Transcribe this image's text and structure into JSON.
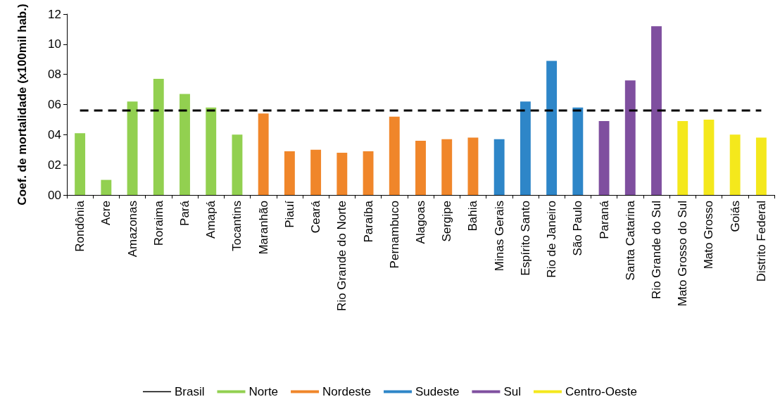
{
  "chart_data": {
    "type": "bar",
    "ylabel": "Coef. de mortalidade (x100mil hab.)",
    "categories": [
      "Rondônia",
      "Acre",
      "Amazonas",
      "Roraima",
      "Pará",
      "Amapá",
      "Tocantins",
      "Maranhão",
      "Piauí",
      "Ceará",
      "Rio Grande do Norte",
      "Paraíba",
      "Pernambuco",
      "Alagoas",
      "Sergipe",
      "Bahia",
      "Minas Gerais",
      "Espírito Santo",
      "Rio de Janeiro",
      "São Paulo",
      "Paraná",
      "Santa Catarina",
      "Rio Grande do Sul",
      "Mato Grosso do Sul",
      "Mato Grosso",
      "Goiás",
      "Distrito Federal"
    ],
    "series": [
      {
        "name": "Brasil",
        "type": "line",
        "color": "#000000",
        "line_style": "dashed",
        "values": [
          5.6,
          5.6,
          5.6,
          5.6,
          5.6,
          5.6,
          5.6,
          5.6,
          5.6,
          5.6,
          5.6,
          5.6,
          5.6,
          5.6,
          5.6,
          5.6,
          5.6,
          5.6,
          5.6,
          5.6,
          5.6,
          5.6,
          5.6,
          5.6,
          5.6,
          5.6,
          5.6
        ]
      },
      {
        "name": "Norte",
        "color": "#92d050",
        "values": [
          4.1,
          1.0,
          6.2,
          7.7,
          6.7,
          5.8,
          4.0,
          null,
          null,
          null,
          null,
          null,
          null,
          null,
          null,
          null,
          null,
          null,
          null,
          null,
          null,
          null,
          null,
          null,
          null,
          null,
          null
        ]
      },
      {
        "name": "Nordeste",
        "color": "#f0862a",
        "values": [
          null,
          null,
          null,
          null,
          null,
          null,
          null,
          5.4,
          2.9,
          3.0,
          2.8,
          2.9,
          5.2,
          3.6,
          3.7,
          3.8,
          null,
          null,
          null,
          null,
          null,
          null,
          null,
          null,
          null,
          null,
          null
        ]
      },
      {
        "name": "Sudeste",
        "color": "#2e86c8",
        "values": [
          null,
          null,
          null,
          null,
          null,
          null,
          null,
          null,
          null,
          null,
          null,
          null,
          null,
          null,
          null,
          null,
          3.7,
          6.2,
          8.9,
          5.8,
          null,
          null,
          null,
          null,
          null,
          null,
          null
        ]
      },
      {
        "name": "Sul",
        "color": "#7f4f9f",
        "values": [
          null,
          null,
          null,
          null,
          null,
          null,
          null,
          null,
          null,
          null,
          null,
          null,
          null,
          null,
          null,
          null,
          null,
          null,
          null,
          null,
          4.9,
          7.6,
          11.2,
          null,
          null,
          null,
          null
        ]
      },
      {
        "name": "Centro-Oeste",
        "color": "#f4e81c",
        "values": [
          null,
          null,
          null,
          null,
          null,
          null,
          null,
          null,
          null,
          null,
          null,
          null,
          null,
          null,
          null,
          null,
          null,
          null,
          null,
          null,
          null,
          null,
          null,
          4.9,
          5.0,
          4.0,
          3.8
        ]
      }
    ],
    "ylim": [
      0,
      12
    ],
    "yticks": [
      {
        "value": 0,
        "label": "00"
      },
      {
        "value": 2,
        "label": "02"
      },
      {
        "value": 4,
        "label": "04"
      },
      {
        "value": 6,
        "label": "06"
      },
      {
        "value": 8,
        "label": "08"
      },
      {
        "value": 10,
        "label": "10"
      },
      {
        "value": 12,
        "label": "12"
      }
    ],
    "grid": false,
    "legend": "bottom",
    "marker": "none"
  }
}
